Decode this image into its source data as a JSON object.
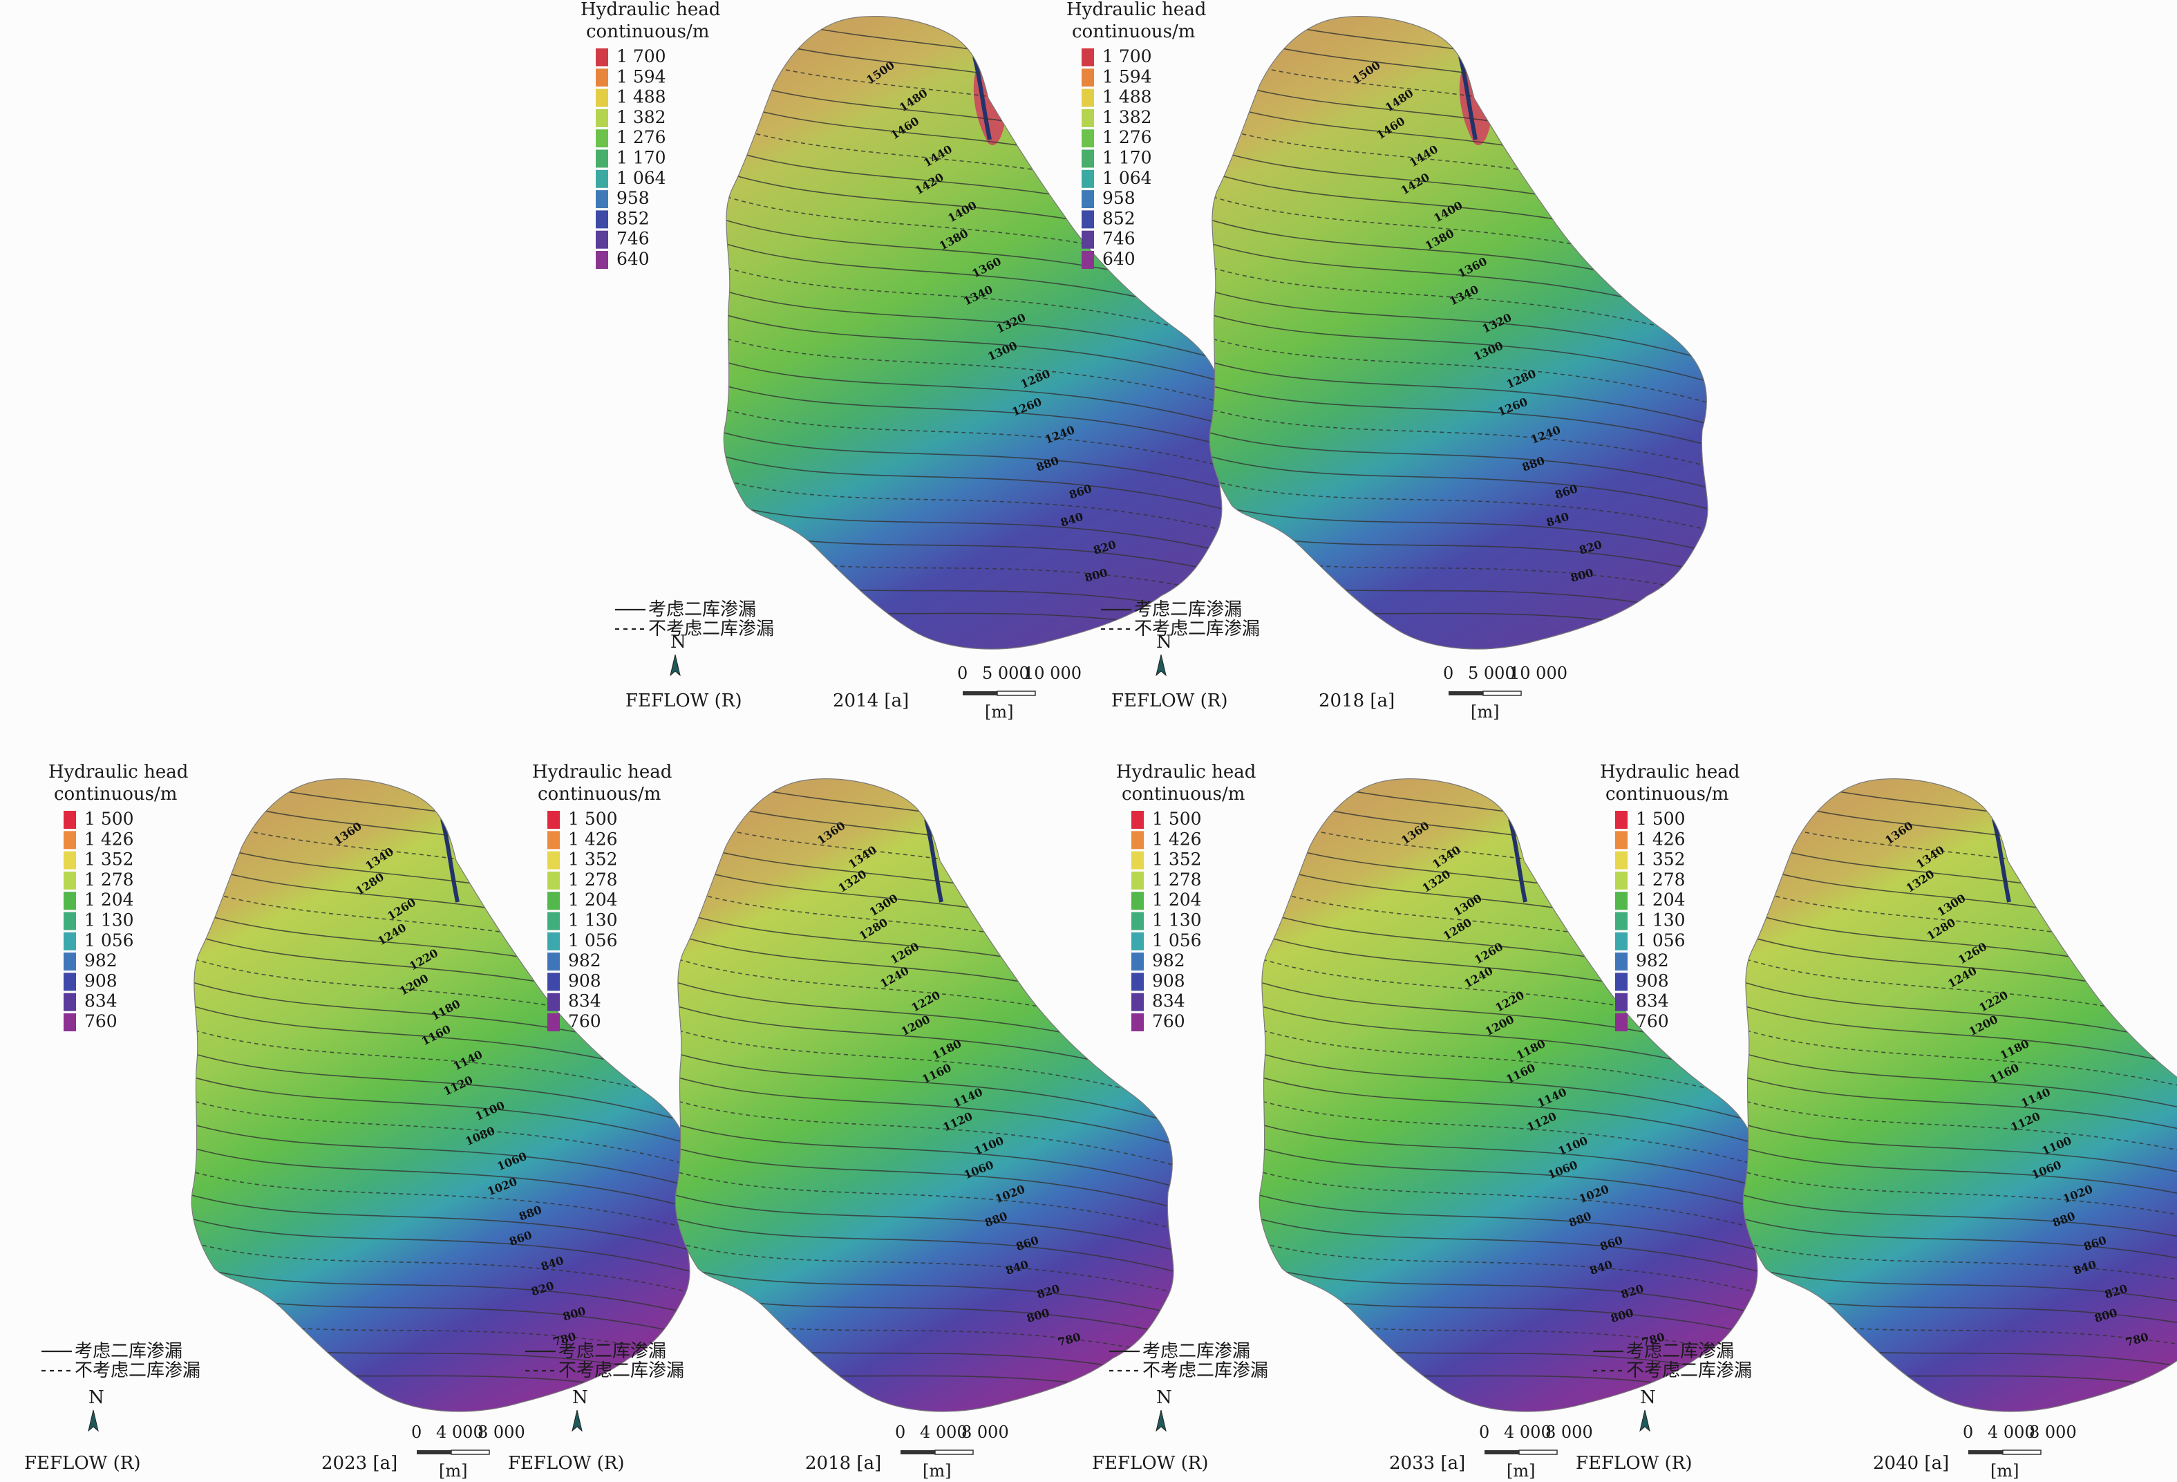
{
  "legend_title_1": "Hydraulic head",
  "legend_title_2": "continuous/m",
  "scale_unit": "[m]",
  "software_label": "FEFLOW (R)",
  "north_label": "N",
  "line_legend": {
    "solid": "考虑二库渗漏",
    "dashed": "不考虑二库渗漏"
  },
  "legends": {
    "top": {
      "labels": [
        "1 700",
        "1 594",
        "1 488",
        "1 382",
        "1 276",
        "1 170",
        "1 064",
        "958",
        "852",
        "746",
        "640"
      ],
      "colors": [
        "#d13b46",
        "#e7853d",
        "#e3cd45",
        "#b4d34e",
        "#6cc24b",
        "#48ae6c",
        "#3aa9a2",
        "#3f7ab8",
        "#3d4ba6",
        "#5a3e98",
        "#8a3592"
      ]
    },
    "bottom": {
      "labels": [
        "1 500",
        "1 426",
        "1 352",
        "1 278",
        "1 204",
        "1 130",
        "1 056",
        "982",
        "908",
        "834",
        "760"
      ],
      "colors": [
        "#e0283f",
        "#ec8a3d",
        "#e6d74c",
        "#b8d750",
        "#52b84c",
        "#3fae7c",
        "#3aa8ad",
        "#3f76ba",
        "#3e48a8",
        "#5a3b9b",
        "#8c3092"
      ]
    }
  },
  "panels": [
    {
      "id": "p2014",
      "year_label": "2014 [a]",
      "scale_ticks": [
        "0",
        "5 000",
        "10 000"
      ],
      "legend_set": "top",
      "contours": [
        "1500",
        "1480",
        "1460",
        "1440",
        "1420",
        "1400",
        "1380",
        "1360",
        "1340",
        "1320",
        "1300",
        "1280",
        "1260",
        "1240",
        "880",
        "860",
        "840",
        "820",
        "800"
      ]
    },
    {
      "id": "p2018a",
      "year_label": "2018 [a]",
      "scale_ticks": [
        "0",
        "5 000",
        "10 000"
      ],
      "legend_set": "top",
      "contours": [
        "1500",
        "1480",
        "1460",
        "1440",
        "1420",
        "1400",
        "1380",
        "1360",
        "1340",
        "1320",
        "1300",
        "1280",
        "1260",
        "1240",
        "880",
        "860",
        "840",
        "820",
        "800"
      ]
    },
    {
      "id": "p2023",
      "year_label": "2023 [a]",
      "scale_ticks": [
        "0",
        "4 000",
        "8 000"
      ],
      "legend_set": "bottom",
      "contours": [
        "1360",
        "1340",
        "1280",
        "1260",
        "1240",
        "1220",
        "1200",
        "1180",
        "1160",
        "1140",
        "1120",
        "1100",
        "1080",
        "1060",
        "1020",
        "880",
        "860",
        "840",
        "820",
        "800",
        "780"
      ]
    },
    {
      "id": "p2018b",
      "year_label": "2018 [a]",
      "scale_ticks": [
        "0",
        "4 000",
        "8 000"
      ],
      "legend_set": "bottom",
      "contours": [
        "1360",
        "1340",
        "1320",
        "1300",
        "1280",
        "1260",
        "1240",
        "1220",
        "1200",
        "1180",
        "1160",
        "1140",
        "1120",
        "1100",
        "1060",
        "1020",
        "880",
        "860",
        "840",
        "820",
        "800",
        "780"
      ]
    },
    {
      "id": "p2033",
      "year_label": "2033 [a]",
      "scale_ticks": [
        "0",
        "4 000",
        "8 000"
      ],
      "legend_set": "bottom",
      "contours": [
        "1360",
        "1340",
        "1320",
        "1300",
        "1280",
        "1260",
        "1240",
        "1220",
        "1200",
        "1180",
        "1160",
        "1140",
        "1120",
        "1100",
        "1060",
        "1020",
        "880",
        "860",
        "840",
        "820",
        "800",
        "780"
      ]
    },
    {
      "id": "p2040",
      "year_label": "2040 [a]",
      "scale_ticks": [
        "0",
        "4 000",
        "8 000"
      ],
      "legend_set": "bottom",
      "contours": [
        "1360",
        "1340",
        "1320",
        "1300",
        "1280",
        "1260",
        "1240",
        "1220",
        "1200",
        "1180",
        "1160",
        "1140",
        "1120",
        "1100",
        "1060",
        "1020",
        "880",
        "860",
        "840",
        "820",
        "800",
        "780"
      ]
    }
  ]
}
